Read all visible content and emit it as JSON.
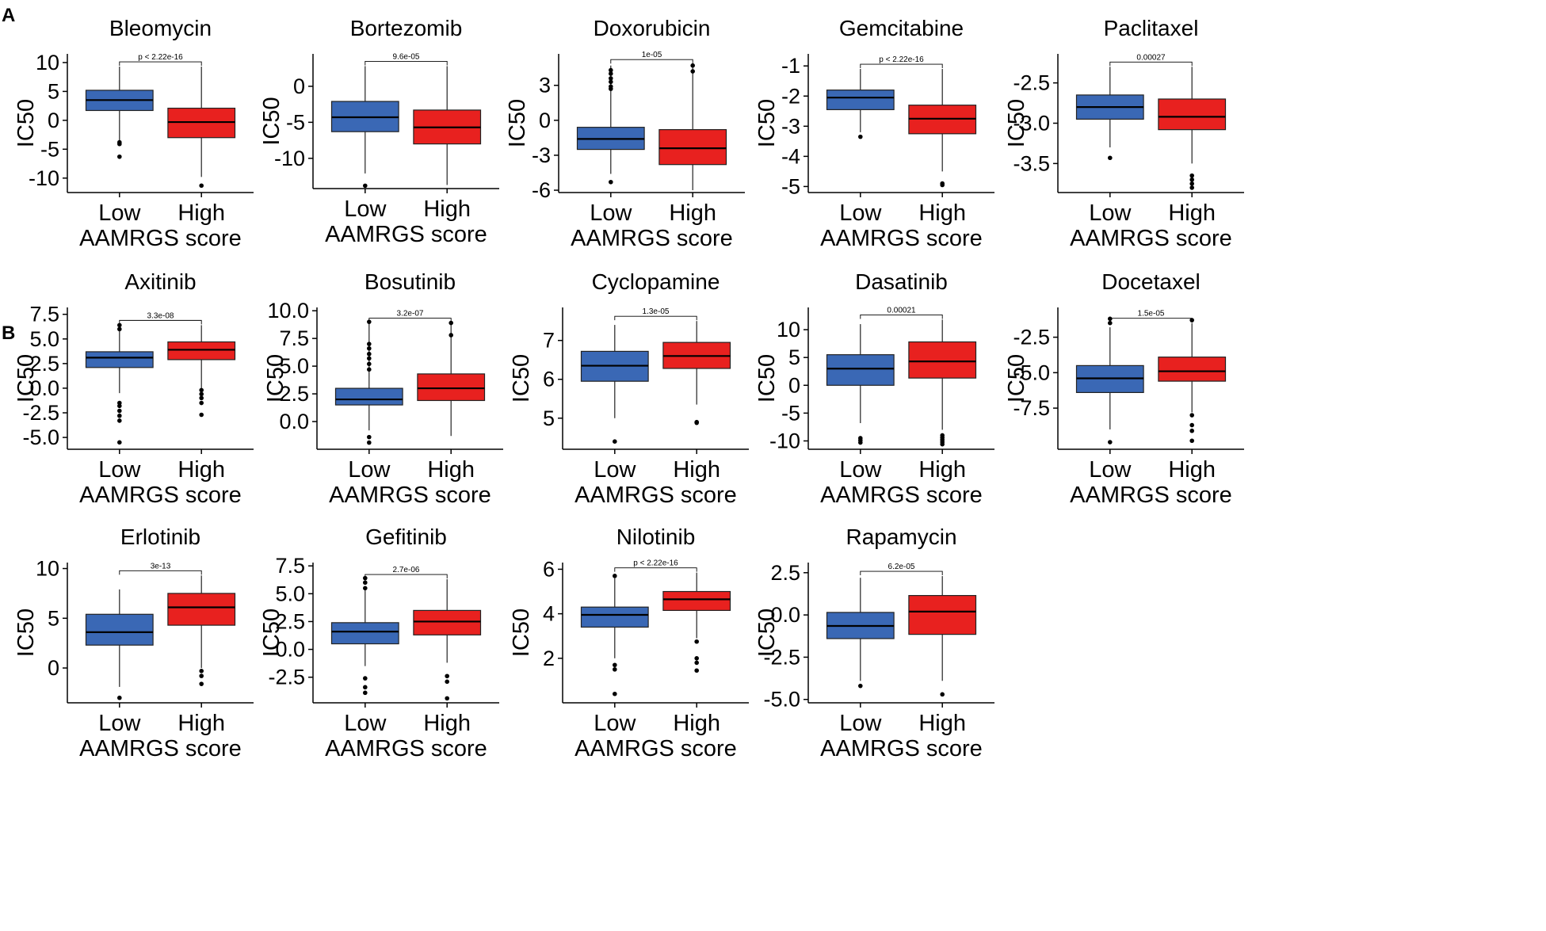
{
  "figure": {
    "panel_labels": [
      "A",
      "B"
    ]
  },
  "chart_data": [
    {
      "type": "box",
      "title": "Bleomycin",
      "ylabel": "IC50",
      "xlabel": "AAMRGS score",
      "categories": [
        "Low",
        "High"
      ],
      "pvalue": "p < 2.22e-16",
      "ylim": [
        -12.5,
        11.5
      ],
      "yticks": [
        10,
        5,
        0,
        -5,
        -10
      ],
      "tick_labels": [
        "10",
        "5",
        "0",
        "-5",
        "-10"
      ],
      "colors": [
        "#3A68B5",
        "#E8211F"
      ],
      "boxes": [
        {
          "name": "Low",
          "min": -3.5,
          "q1": 1.7,
          "median": 3.5,
          "q3": 5.2,
          "max": 9.3,
          "outliers": [
            -3.8,
            -4.1,
            -6.3
          ]
        },
        {
          "name": "High",
          "min": -9.8,
          "q1": -3.0,
          "median": -0.3,
          "q3": 2.1,
          "max": 9.3,
          "outliers": [
            -11.3
          ]
        }
      ]
    },
    {
      "type": "box",
      "title": "Bortezomib",
      "ylabel": "IC50",
      "xlabel": "AAMRGS score",
      "categories": [
        "Low",
        "High"
      ],
      "pvalue": "9.6e-05",
      "ylim": [
        -14.2,
        4.5
      ],
      "yticks": [
        0,
        -5,
        -10
      ],
      "tick_labels": [
        "0",
        "-5",
        "-10"
      ],
      "colors": [
        "#3A68B5",
        "#E8211F"
      ],
      "boxes": [
        {
          "name": "Low",
          "min": -12.1,
          "q1": -6.3,
          "median": -4.3,
          "q3": -2.1,
          "max": 2.8,
          "outliers": [
            -13.8
          ]
        },
        {
          "name": "High",
          "min": -13.7,
          "q1": -8.0,
          "median": -5.7,
          "q3": -3.3,
          "max": 2.8,
          "outliers": []
        }
      ]
    },
    {
      "type": "box",
      "title": "Doxorubicin",
      "ylabel": "IC50",
      "xlabel": "AAMRGS score",
      "categories": [
        "Low",
        "High"
      ],
      "pvalue": "1e-05",
      "ylim": [
        -6.2,
        5.7
      ],
      "yticks": [
        3,
        0,
        -3,
        -6
      ],
      "tick_labels": [
        "3",
        "0",
        "-3",
        "-6"
      ],
      "colors": [
        "#3A68B5",
        "#E8211F"
      ],
      "boxes": [
        {
          "name": "Low",
          "min": -4.6,
          "q1": -2.5,
          "median": -1.6,
          "q3": -0.6,
          "max": 4.7,
          "outliers": [
            4.3,
            4.0,
            3.6,
            3.3,
            2.9,
            2.7,
            -5.3
          ]
        },
        {
          "name": "High",
          "min": -6.0,
          "q1": -3.8,
          "median": -2.4,
          "q3": -0.8,
          "max": 4.8,
          "outliers": [
            4.7,
            4.2
          ]
        }
      ]
    },
    {
      "type": "box",
      "title": "Gemcitabine",
      "ylabel": "IC50",
      "xlabel": "AAMRGS score",
      "categories": [
        "Low",
        "High"
      ],
      "pvalue": "p < 2.22e-16",
      "ylim": [
        -5.2,
        -0.6
      ],
      "yticks": [
        -1,
        -2,
        -3,
        -4,
        -5
      ],
      "tick_labels": [
        "-1",
        "-2",
        "-3",
        "-4",
        "-5"
      ],
      "colors": [
        "#3A68B5",
        "#E8211F"
      ],
      "boxes": [
        {
          "name": "Low",
          "min": -3.2,
          "q1": -2.45,
          "median": -2.05,
          "q3": -1.8,
          "max": -1.1,
          "outliers": [
            -3.35
          ]
        },
        {
          "name": "High",
          "min": -4.5,
          "q1": -3.25,
          "median": -2.75,
          "q3": -2.3,
          "max": -1.1,
          "outliers": [
            -4.9,
            -4.95
          ]
        }
      ]
    },
    {
      "type": "box",
      "title": "Paclitaxel",
      "ylabel": "IC50",
      "xlabel": "AAMRGS score",
      "categories": [
        "Low",
        "High"
      ],
      "pvalue": "0.00027",
      "ylim": [
        -3.86,
        -2.14
      ],
      "yticks": [
        -2.5,
        -3.0,
        -3.5
      ],
      "tick_labels": [
        "-2.5",
        "-3.0",
        "-3.5"
      ],
      "colors": [
        "#3A68B5",
        "#E8211F"
      ],
      "boxes": [
        {
          "name": "Low",
          "min": -3.3,
          "q1": -2.95,
          "median": -2.8,
          "q3": -2.65,
          "max": -2.3,
          "outliers": [
            -3.43
          ]
        },
        {
          "name": "High",
          "min": -3.5,
          "q1": -3.08,
          "median": -2.92,
          "q3": -2.7,
          "max": -2.3,
          "outliers": [
            -3.65,
            -3.7,
            -3.75,
            -3.8
          ]
        }
      ]
    },
    {
      "type": "box",
      "title": "Axitinib",
      "ylabel": "IC50",
      "xlabel": "AAMRGS score",
      "categories": [
        "Low",
        "High"
      ],
      "pvalue": "3.3e-08",
      "ylim": [
        -6.2,
        8.2
      ],
      "yticks": [
        7.5,
        5.0,
        2.5,
        0.0,
        -2.5,
        -5.0
      ],
      "tick_labels": [
        "7.5",
        "5.0",
        "2.5",
        "0.0",
        "-2.5",
        "-5.0"
      ],
      "colors": [
        "#3A68B5",
        "#E8211F"
      ],
      "boxes": [
        {
          "name": "Low",
          "min": -0.5,
          "q1": 2.1,
          "median": 3.1,
          "q3": 3.7,
          "max": 6.3,
          "outliers": [
            6.4,
            6.0,
            -1.5,
            -1.8,
            -2.3,
            -2.8,
            -3.3,
            -5.5
          ]
        },
        {
          "name": "High",
          "min": -0.3,
          "q1": 2.9,
          "median": 3.9,
          "q3": 4.7,
          "max": 6.4,
          "outliers": [
            -0.2,
            -0.6,
            -1.0,
            -1.5,
            -2.7
          ]
        }
      ]
    },
    {
      "type": "box",
      "title": "Bosutinib",
      "ylabel": "IC50",
      "xlabel": "AAMRGS score",
      "categories": [
        "Low",
        "High"
      ],
      "pvalue": "3.2e-07",
      "ylim": [
        -2.5,
        10.3
      ],
      "yticks": [
        10.0,
        7.5,
        5.0,
        2.5,
        0.0
      ],
      "tick_labels": [
        "10.0",
        "7.5",
        "5.0",
        "2.5",
        "0.0"
      ],
      "colors": [
        "#3A68B5",
        "#E8211F"
      ],
      "boxes": [
        {
          "name": "Low",
          "min": -0.8,
          "q1": 1.5,
          "median": 2.0,
          "q3": 3.0,
          "max": 8.9,
          "outliers": [
            9.0,
            7.0,
            6.6,
            6.1,
            5.7,
            5.2,
            4.7,
            -1.4,
            -1.9
          ]
        },
        {
          "name": "High",
          "min": -1.3,
          "q1": 1.9,
          "median": 3.0,
          "q3": 4.3,
          "max": 8.9,
          "outliers": [
            8.9,
            7.8
          ]
        }
      ]
    },
    {
      "type": "box",
      "title": "Cyclopamine",
      "ylabel": "IC50",
      "xlabel": "AAMRGS score",
      "categories": [
        "Low",
        "High"
      ],
      "pvalue": "1.3e-05",
      "ylim": [
        4.2,
        7.85
      ],
      "yticks": [
        7,
        6,
        5
      ],
      "tick_labels": [
        "7",
        "6",
        "5"
      ],
      "colors": [
        "#3A68B5",
        "#E8211F"
      ],
      "boxes": [
        {
          "name": "Low",
          "min": 5.0,
          "q1": 5.95,
          "median": 6.35,
          "q3": 6.72,
          "max": 7.4,
          "outliers": [
            4.4
          ]
        },
        {
          "name": "High",
          "min": 5.35,
          "q1": 6.28,
          "median": 6.6,
          "q3": 6.95,
          "max": 7.5,
          "outliers": [
            4.9,
            4.88
          ]
        }
      ]
    },
    {
      "type": "box",
      "title": "Dasatinib",
      "ylabel": "IC50",
      "xlabel": "AAMRGS score",
      "categories": [
        "Low",
        "High"
      ],
      "pvalue": "0.00021",
      "ylim": [
        -11.5,
        14
      ],
      "yticks": [
        10,
        5,
        0,
        -5,
        -10
      ],
      "tick_labels": [
        "10",
        "5",
        "0",
        "-5",
        "-10"
      ],
      "colors": [
        "#3A68B5",
        "#E8211F"
      ],
      "boxes": [
        {
          "name": "Low",
          "min": -6.8,
          "q1": 0.0,
          "median": 3.0,
          "q3": 5.5,
          "max": 11.0,
          "outliers": [
            -9.5,
            -9.9,
            -10.3
          ]
        },
        {
          "name": "High",
          "min": -8.0,
          "q1": 1.3,
          "median": 4.3,
          "q3": 7.8,
          "max": 11.8,
          "outliers": [
            -9.0,
            -9.4,
            -9.8,
            -10.2,
            -10.6
          ]
        }
      ]
    },
    {
      "type": "box",
      "title": "Docetaxel",
      "ylabel": "IC50",
      "xlabel": "AAMRGS score",
      "categories": [
        "Low",
        "High"
      ],
      "pvalue": "1.5e-05",
      "ylim": [
        -10.4,
        -0.4
      ],
      "yticks": [
        -2.5,
        -5.0,
        -7.5
      ],
      "tick_labels": [
        "-2.5",
        "-5.0",
        "-7.5"
      ],
      "colors": [
        "#3A68B5",
        "#E8211F"
      ],
      "boxes": [
        {
          "name": "Low",
          "min": -9.0,
          "q1": -6.4,
          "median": -5.4,
          "q3": -4.5,
          "max": -1.8,
          "outliers": [
            -1.5,
            -1.2,
            -9.9
          ]
        },
        {
          "name": "High",
          "min": -7.8,
          "q1": -5.6,
          "median": -4.9,
          "q3": -3.9,
          "max": -1.5,
          "outliers": [
            -1.3,
            -8.0,
            -8.7,
            -9.1,
            -9.8
          ]
        }
      ]
    },
    {
      "type": "box",
      "title": "Erlotinib",
      "ylabel": "IC50",
      "xlabel": "AAMRGS score",
      "categories": [
        "Low",
        "High"
      ],
      "pvalue": "3e-13",
      "ylim": [
        -3.5,
        10.6
      ],
      "yticks": [
        10,
        5,
        0
      ],
      "tick_labels": [
        "10",
        "5",
        "0"
      ],
      "colors": [
        "#3A68B5",
        "#E8211F"
      ],
      "boxes": [
        {
          "name": "Low",
          "min": -1.9,
          "q1": 2.3,
          "median": 3.6,
          "q3": 5.4,
          "max": 7.9,
          "outliers": [
            -3.0
          ]
        },
        {
          "name": "High",
          "min": 0.0,
          "q1": 4.3,
          "median": 6.1,
          "q3": 7.5,
          "max": 9.3,
          "outliers": [
            -0.3,
            -0.8,
            -1.6
          ]
        }
      ]
    },
    {
      "type": "box",
      "title": "Gefitinib",
      "ylabel": "IC50",
      "xlabel": "AAMRGS score",
      "categories": [
        "Low",
        "High"
      ],
      "pvalue": "2.7e-06",
      "ylim": [
        -4.8,
        7.8
      ],
      "yticks": [
        7.5,
        5.0,
        2.5,
        0.0,
        -2.5
      ],
      "tick_labels": [
        "7.5",
        "5.0",
        "2.5",
        "0.0",
        "-2.5"
      ],
      "colors": [
        "#3A68B5",
        "#E8211F"
      ],
      "boxes": [
        {
          "name": "Low",
          "min": -1.5,
          "q1": 0.5,
          "median": 1.6,
          "q3": 2.4,
          "max": 5.4,
          "outliers": [
            6.4,
            6.0,
            5.5,
            -2.6,
            -3.4,
            -3.9
          ]
        },
        {
          "name": "High",
          "min": -1.2,
          "q1": 1.3,
          "median": 2.5,
          "q3": 3.5,
          "max": 6.3,
          "outliers": [
            -2.4,
            -2.9,
            -4.4
          ]
        }
      ]
    },
    {
      "type": "box",
      "title": "Nilotinib",
      "ylabel": "IC50",
      "xlabel": "AAMRGS score",
      "categories": [
        "Low",
        "High"
      ],
      "pvalue": "p < 2.22e-16",
      "ylim": [
        0.0,
        6.3
      ],
      "yticks": [
        6,
        4,
        2
      ],
      "tick_labels": [
        "6",
        "4",
        "2"
      ],
      "colors": [
        "#3A68B5",
        "#E8211F"
      ],
      "boxes": [
        {
          "name": "Low",
          "min": 2.0,
          "q1": 3.4,
          "median": 3.95,
          "q3": 4.3,
          "max": 5.6,
          "outliers": [
            5.7,
            1.7,
            1.5,
            0.4
          ]
        },
        {
          "name": "High",
          "min": 2.9,
          "q1": 4.15,
          "median": 4.65,
          "q3": 5.0,
          "max": 5.85,
          "outliers": [
            2.75,
            2.0,
            1.8,
            1.45
          ]
        }
      ]
    },
    {
      "type": "box",
      "title": "Rapamycin",
      "ylabel": "IC50",
      "xlabel": "AAMRGS score",
      "categories": [
        "Low",
        "High"
      ],
      "pvalue": "6.2e-05",
      "ylim": [
        -5.2,
        3.1
      ],
      "yticks": [
        2.5,
        0.0,
        -2.5,
        -5.0
      ],
      "tick_labels": [
        "2.5",
        "0.0",
        "-2.5",
        "-5.0"
      ],
      "colors": [
        "#3A68B5",
        "#E8211F"
      ],
      "boxes": [
        {
          "name": "Low",
          "min": -3.9,
          "q1": -1.4,
          "median": -0.65,
          "q3": 0.15,
          "max": 2.2,
          "outliers": [
            -4.2
          ]
        },
        {
          "name": "High",
          "min": -3.9,
          "q1": -1.15,
          "median": 0.2,
          "q3": 1.15,
          "max": 2.3,
          "outliers": [
            -4.7
          ]
        }
      ]
    }
  ]
}
